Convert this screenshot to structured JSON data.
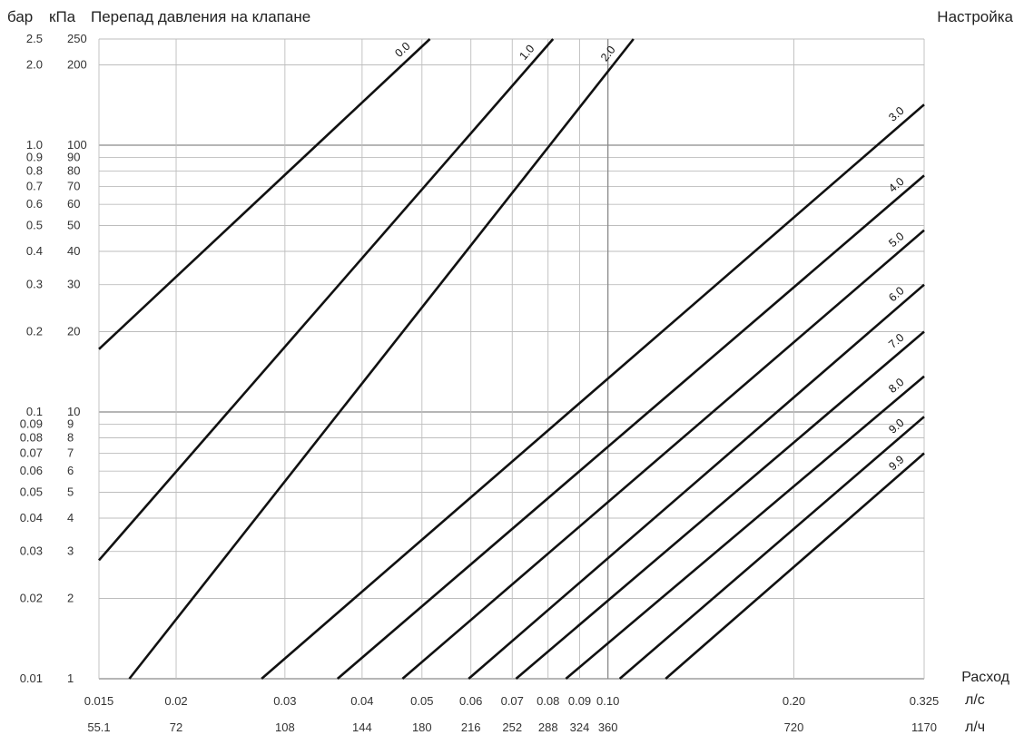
{
  "header": {
    "bar_unit": "бар",
    "kpa_unit": "кПа",
    "title": "Перепад давления на клапане",
    "settings_title": "Настройка"
  },
  "axes": {
    "x_title": "Расход",
    "x_unit_ls": "л/с",
    "x_unit_lh": "л/ч"
  },
  "chart_data": {
    "type": "line",
    "title": "Перепад давления на клапане",
    "xlabel": "Расход",
    "ylabel": "Перепад давления на клапане",
    "x_scale": "log",
    "y_scale": "log",
    "xlim": [
      0.015,
      0.325
    ],
    "ylim": [
      1,
      250
    ],
    "grid": true,
    "legend": "labels at line ends (top-right)",
    "x_ticks": [
      {
        "ls": "0.015",
        "lh": "55.1",
        "value": 0.015
      },
      {
        "ls": "0.02",
        "lh": "72",
        "value": 0.02
      },
      {
        "ls": "0.03",
        "lh": "108",
        "value": 0.03
      },
      {
        "ls": "0.04",
        "lh": "144",
        "value": 0.04
      },
      {
        "ls": "0.05",
        "lh": "180",
        "value": 0.05
      },
      {
        "ls": "0.06",
        "lh": "216",
        "value": 0.06
      },
      {
        "ls": "0.07",
        "lh": "252",
        "value": 0.07
      },
      {
        "ls": "0.08",
        "lh": "288",
        "value": 0.08
      },
      {
        "ls": "0.09",
        "lh": "324",
        "value": 0.09
      },
      {
        "ls": "0.10",
        "lh": "360",
        "value": 0.1
      },
      {
        "ls": "0.20",
        "lh": "720",
        "value": 0.2
      },
      {
        "ls": "0.325",
        "lh": "1170",
        "value": 0.325
      }
    ],
    "y_ticks": [
      {
        "bar": "2.5",
        "kpa": "250",
        "value": 250
      },
      {
        "bar": "2.0",
        "kpa": "200",
        "value": 200
      },
      {
        "bar": "1.0",
        "kpa": "100",
        "value": 100
      },
      {
        "bar": "0.9",
        "kpa": "90",
        "value": 90
      },
      {
        "bar": "0.8",
        "kpa": "80",
        "value": 80
      },
      {
        "bar": "0.7",
        "kpa": "70",
        "value": 70
      },
      {
        "bar": "0.6",
        "kpa": "60",
        "value": 60
      },
      {
        "bar": "0.5",
        "kpa": "50",
        "value": 50
      },
      {
        "bar": "0.4",
        "kpa": "40",
        "value": 40
      },
      {
        "bar": "0.3",
        "kpa": "30",
        "value": 30
      },
      {
        "bar": "0.2",
        "kpa": "20",
        "value": 20
      },
      {
        "bar": "0.1",
        "kpa": "10",
        "value": 10
      },
      {
        "bar": "0.09",
        "kpa": "9",
        "value": 9
      },
      {
        "bar": "0.08",
        "kpa": "8",
        "value": 8
      },
      {
        "bar": "0.07",
        "kpa": "7",
        "value": 7
      },
      {
        "bar": "0.06",
        "kpa": "6",
        "value": 6
      },
      {
        "bar": "0.05",
        "kpa": "5",
        "value": 5
      },
      {
        "bar": "0.04",
        "kpa": "4",
        "value": 4
      },
      {
        "bar": "0.03",
        "kpa": "3",
        "value": 3
      },
      {
        "bar": "0.02",
        "kpa": "2",
        "value": 2
      },
      {
        "bar": "0.01",
        "kpa": "1",
        "value": 1
      }
    ],
    "series": [
      {
        "name": "0.0",
        "x": [
          0.015,
          0.0515
        ],
        "y": [
          17.2,
          250
        ]
      },
      {
        "name": "1.0",
        "x": [
          0.015,
          0.0815
        ],
        "y": [
          2.78,
          250
        ]
      },
      {
        "name": "2.0",
        "x": [
          0.0168,
          0.11
        ],
        "y": [
          1,
          250
        ]
      },
      {
        "name": "3.0",
        "x": [
          0.0275,
          0.325
        ],
        "y": [
          1,
          142
        ]
      },
      {
        "name": "4.0",
        "x": [
          0.0365,
          0.325
        ],
        "y": [
          1,
          77
        ]
      },
      {
        "name": "5.0",
        "x": [
          0.0465,
          0.325
        ],
        "y": [
          1,
          48
        ]
      },
      {
        "name": "6.0",
        "x": [
          0.0595,
          0.325
        ],
        "y": [
          1,
          30
        ]
      },
      {
        "name": "7.0",
        "x": [
          0.071,
          0.325
        ],
        "y": [
          1,
          20
        ]
      },
      {
        "name": "8.0",
        "x": [
          0.0855,
          0.325
        ],
        "y": [
          1,
          13.6
        ]
      },
      {
        "name": "9.0",
        "x": [
          0.1045,
          0.325
        ],
        "y": [
          1,
          9.6
        ]
      },
      {
        "name": "9.9",
        "x": [
          0.124,
          0.325
        ],
        "y": [
          1,
          7
        ]
      }
    ],
    "colors": {
      "lines": "#111111",
      "grid": "#bdbdbd",
      "major_grid": "#8a8a8a"
    }
  }
}
